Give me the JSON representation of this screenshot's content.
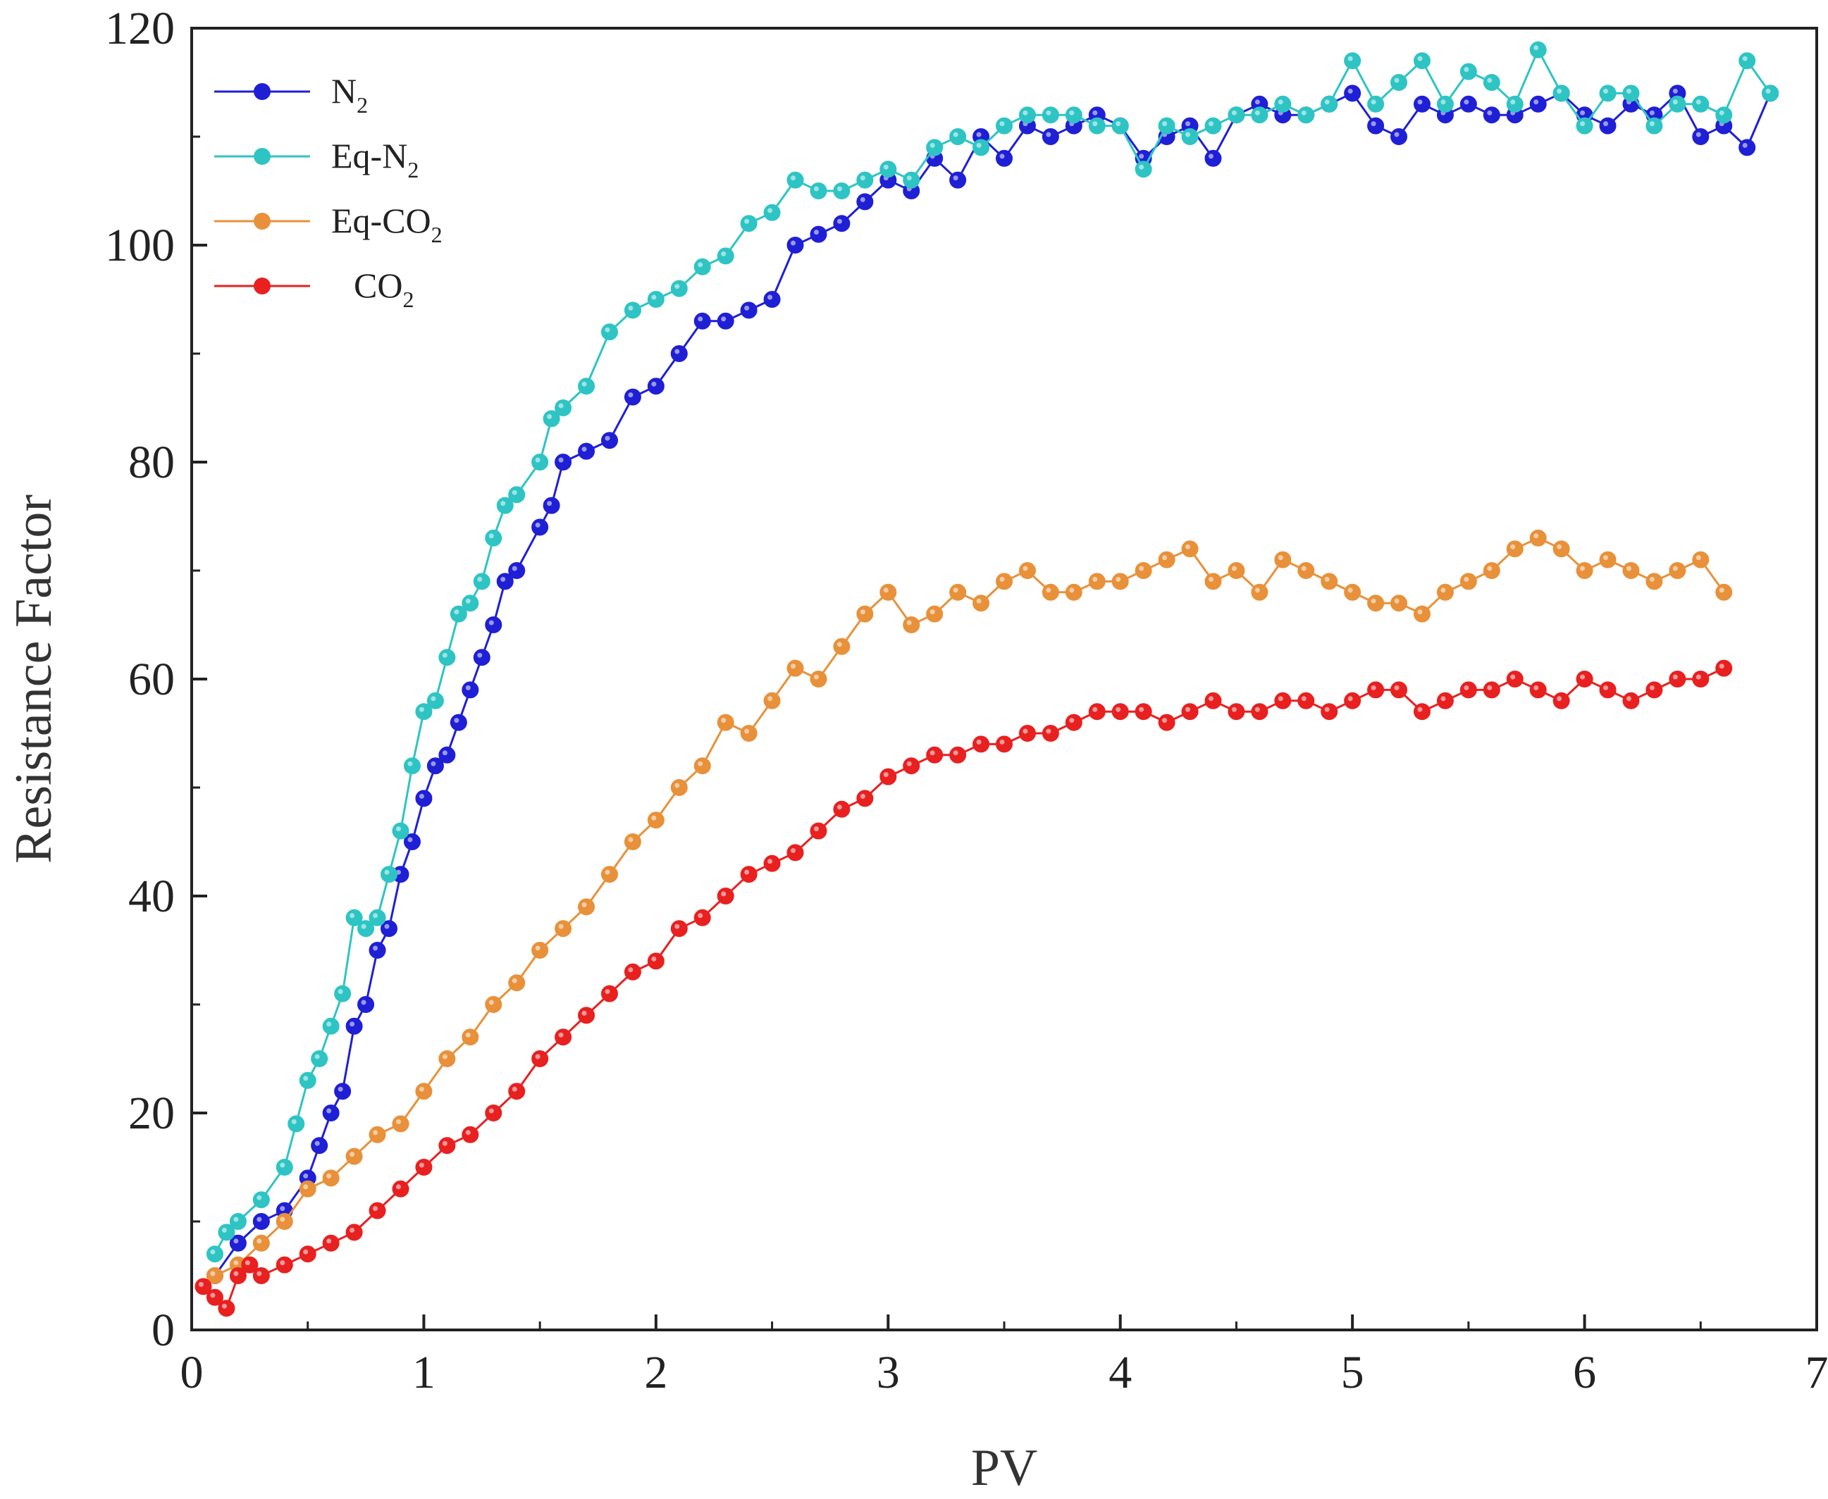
{
  "chart_data": {
    "type": "line",
    "title": "",
    "xlabel": "PV",
    "ylabel": "Resistance Factor",
    "xlim": [
      0,
      7
    ],
    "ylim": [
      0,
      120
    ],
    "xticks": [
      "0",
      "1",
      "2",
      "3",
      "4",
      "5",
      "6",
      "7"
    ],
    "yticks": [
      "0",
      "20",
      "40",
      "60",
      "80",
      "100",
      "120"
    ],
    "legend_position": "top-left",
    "series": [
      {
        "name": "N2",
        "label_main": "N",
        "label_sub": "2",
        "label_suffix": "",
        "color": "#1f1fd6",
        "points": [
          [
            0.1,
            5
          ],
          [
            0.2,
            8
          ],
          [
            0.3,
            10
          ],
          [
            0.4,
            11
          ],
          [
            0.5,
            14
          ],
          [
            0.55,
            17
          ],
          [
            0.6,
            20
          ],
          [
            0.65,
            22
          ],
          [
            0.7,
            28
          ],
          [
            0.75,
            30
          ],
          [
            0.8,
            35
          ],
          [
            0.85,
            37
          ],
          [
            0.9,
            42
          ],
          [
            0.95,
            45
          ],
          [
            1.0,
            49
          ],
          [
            1.05,
            52
          ],
          [
            1.1,
            53
          ],
          [
            1.15,
            56
          ],
          [
            1.2,
            59
          ],
          [
            1.25,
            62
          ],
          [
            1.3,
            65
          ],
          [
            1.35,
            69
          ],
          [
            1.4,
            70
          ],
          [
            1.5,
            74
          ],
          [
            1.55,
            76
          ],
          [
            1.6,
            80
          ],
          [
            1.7,
            81
          ],
          [
            1.8,
            82
          ],
          [
            1.9,
            86
          ],
          [
            2.0,
            87
          ],
          [
            2.1,
            90
          ],
          [
            2.2,
            93
          ],
          [
            2.3,
            93
          ],
          [
            2.4,
            94
          ],
          [
            2.5,
            95
          ],
          [
            2.6,
            100
          ],
          [
            2.7,
            101
          ],
          [
            2.8,
            102
          ],
          [
            2.9,
            104
          ],
          [
            3.0,
            106
          ],
          [
            3.1,
            105
          ],
          [
            3.2,
            108
          ],
          [
            3.3,
            106
          ],
          [
            3.4,
            110
          ],
          [
            3.5,
            108
          ],
          [
            3.6,
            111
          ],
          [
            3.7,
            110
          ],
          [
            3.8,
            111
          ],
          [
            3.9,
            112
          ],
          [
            4.0,
            111
          ],
          [
            4.1,
            108
          ],
          [
            4.2,
            110
          ],
          [
            4.3,
            111
          ],
          [
            4.4,
            108
          ],
          [
            4.5,
            112
          ],
          [
            4.6,
            113
          ],
          [
            4.7,
            112
          ],
          [
            4.8,
            112
          ],
          [
            4.9,
            113
          ],
          [
            5.0,
            114
          ],
          [
            5.1,
            111
          ],
          [
            5.2,
            110
          ],
          [
            5.3,
            113
          ],
          [
            5.4,
            112
          ],
          [
            5.5,
            113
          ],
          [
            5.6,
            112
          ],
          [
            5.7,
            112
          ],
          [
            5.8,
            113
          ],
          [
            5.9,
            114
          ],
          [
            6.0,
            112
          ],
          [
            6.1,
            111
          ],
          [
            6.2,
            113
          ],
          [
            6.3,
            112
          ],
          [
            6.4,
            114
          ],
          [
            6.5,
            110
          ],
          [
            6.6,
            111
          ],
          [
            6.7,
            109
          ],
          [
            6.8,
            114
          ]
        ]
      },
      {
        "name": "Eq-N2",
        "label_main": "Eq-N",
        "label_sub": "2",
        "label_suffix": "",
        "color": "#2ec4c4",
        "points": [
          [
            0.1,
            7
          ],
          [
            0.15,
            9
          ],
          [
            0.2,
            10
          ],
          [
            0.3,
            12
          ],
          [
            0.4,
            15
          ],
          [
            0.45,
            19
          ],
          [
            0.5,
            23
          ],
          [
            0.55,
            25
          ],
          [
            0.6,
            28
          ],
          [
            0.65,
            31
          ],
          [
            0.7,
            38
          ],
          [
            0.75,
            37
          ],
          [
            0.8,
            38
          ],
          [
            0.85,
            42
          ],
          [
            0.9,
            46
          ],
          [
            0.95,
            52
          ],
          [
            1.0,
            57
          ],
          [
            1.05,
            58
          ],
          [
            1.1,
            62
          ],
          [
            1.15,
            66
          ],
          [
            1.2,
            67
          ],
          [
            1.25,
            69
          ],
          [
            1.3,
            73
          ],
          [
            1.35,
            76
          ],
          [
            1.4,
            77
          ],
          [
            1.5,
            80
          ],
          [
            1.55,
            84
          ],
          [
            1.6,
            85
          ],
          [
            1.7,
            87
          ],
          [
            1.8,
            92
          ],
          [
            1.9,
            94
          ],
          [
            2.0,
            95
          ],
          [
            2.1,
            96
          ],
          [
            2.2,
            98
          ],
          [
            2.3,
            99
          ],
          [
            2.4,
            102
          ],
          [
            2.5,
            103
          ],
          [
            2.6,
            106
          ],
          [
            2.7,
            105
          ],
          [
            2.8,
            105
          ],
          [
            2.9,
            106
          ],
          [
            3.0,
            107
          ],
          [
            3.1,
            106
          ],
          [
            3.2,
            109
          ],
          [
            3.3,
            110
          ],
          [
            3.4,
            109
          ],
          [
            3.5,
            111
          ],
          [
            3.6,
            112
          ],
          [
            3.7,
            112
          ],
          [
            3.8,
            112
          ],
          [
            3.9,
            111
          ],
          [
            4.0,
            111
          ],
          [
            4.1,
            107
          ],
          [
            4.2,
            111
          ],
          [
            4.3,
            110
          ],
          [
            4.4,
            111
          ],
          [
            4.5,
            112
          ],
          [
            4.6,
            112
          ],
          [
            4.7,
            113
          ],
          [
            4.8,
            112
          ],
          [
            4.9,
            113
          ],
          [
            5.0,
            117
          ],
          [
            5.1,
            113
          ],
          [
            5.2,
            115
          ],
          [
            5.3,
            117
          ],
          [
            5.4,
            113
          ],
          [
            5.5,
            116
          ],
          [
            5.6,
            115
          ],
          [
            5.7,
            113
          ],
          [
            5.8,
            118
          ],
          [
            5.9,
            114
          ],
          [
            6.0,
            111
          ],
          [
            6.1,
            114
          ],
          [
            6.2,
            114
          ],
          [
            6.3,
            111
          ],
          [
            6.4,
            113
          ],
          [
            6.5,
            113
          ],
          [
            6.6,
            112
          ],
          [
            6.7,
            117
          ],
          [
            6.8,
            114
          ]
        ]
      },
      {
        "name": "Eq-CO2",
        "label_main": "Eq-CO",
        "label_sub": "2",
        "label_suffix": "",
        "color": "#e8913a",
        "points": [
          [
            0.1,
            5
          ],
          [
            0.2,
            6
          ],
          [
            0.3,
            8
          ],
          [
            0.4,
            10
          ],
          [
            0.5,
            13
          ],
          [
            0.6,
            14
          ],
          [
            0.7,
            16
          ],
          [
            0.8,
            18
          ],
          [
            0.9,
            19
          ],
          [
            1.0,
            22
          ],
          [
            1.1,
            25
          ],
          [
            1.2,
            27
          ],
          [
            1.3,
            30
          ],
          [
            1.4,
            32
          ],
          [
            1.5,
            35
          ],
          [
            1.6,
            37
          ],
          [
            1.7,
            39
          ],
          [
            1.8,
            42
          ],
          [
            1.9,
            45
          ],
          [
            2.0,
            47
          ],
          [
            2.1,
            50
          ],
          [
            2.2,
            52
          ],
          [
            2.3,
            56
          ],
          [
            2.4,
            55
          ],
          [
            2.5,
            58
          ],
          [
            2.6,
            61
          ],
          [
            2.7,
            60
          ],
          [
            2.8,
            63
          ],
          [
            2.9,
            66
          ],
          [
            3.0,
            68
          ],
          [
            3.1,
            65
          ],
          [
            3.2,
            66
          ],
          [
            3.3,
            68
          ],
          [
            3.4,
            67
          ],
          [
            3.5,
            69
          ],
          [
            3.6,
            70
          ],
          [
            3.7,
            68
          ],
          [
            3.8,
            68
          ],
          [
            3.9,
            69
          ],
          [
            4.0,
            69
          ],
          [
            4.1,
            70
          ],
          [
            4.2,
            71
          ],
          [
            4.3,
            72
          ],
          [
            4.4,
            69
          ],
          [
            4.5,
            70
          ],
          [
            4.6,
            68
          ],
          [
            4.7,
            71
          ],
          [
            4.8,
            70
          ],
          [
            4.9,
            69
          ],
          [
            5.0,
            68
          ],
          [
            5.1,
            67
          ],
          [
            5.2,
            67
          ],
          [
            5.3,
            66
          ],
          [
            5.4,
            68
          ],
          [
            5.5,
            69
          ],
          [
            5.6,
            70
          ],
          [
            5.7,
            72
          ],
          [
            5.8,
            73
          ],
          [
            5.9,
            72
          ],
          [
            6.0,
            70
          ],
          [
            6.1,
            71
          ],
          [
            6.2,
            70
          ],
          [
            6.3,
            69
          ],
          [
            6.4,
            70
          ],
          [
            6.5,
            71
          ],
          [
            6.6,
            68
          ]
        ]
      },
      {
        "name": "CO2",
        "label_main": "CO",
        "label_sub": "2",
        "label_suffix": "",
        "color": "#e82020",
        "points": [
          [
            0.05,
            4
          ],
          [
            0.1,
            3
          ],
          [
            0.15,
            2
          ],
          [
            0.2,
            5
          ],
          [
            0.25,
            6
          ],
          [
            0.3,
            5
          ],
          [
            0.4,
            6
          ],
          [
            0.5,
            7
          ],
          [
            0.6,
            8
          ],
          [
            0.7,
            9
          ],
          [
            0.8,
            11
          ],
          [
            0.9,
            13
          ],
          [
            1.0,
            15
          ],
          [
            1.1,
            17
          ],
          [
            1.2,
            18
          ],
          [
            1.3,
            20
          ],
          [
            1.4,
            22
          ],
          [
            1.5,
            25
          ],
          [
            1.6,
            27
          ],
          [
            1.7,
            29
          ],
          [
            1.8,
            31
          ],
          [
            1.9,
            33
          ],
          [
            2.0,
            34
          ],
          [
            2.1,
            37
          ],
          [
            2.2,
            38
          ],
          [
            2.3,
            40
          ],
          [
            2.4,
            42
          ],
          [
            2.5,
            43
          ],
          [
            2.6,
            44
          ],
          [
            2.7,
            46
          ],
          [
            2.8,
            48
          ],
          [
            2.9,
            49
          ],
          [
            3.0,
            51
          ],
          [
            3.1,
            52
          ],
          [
            3.2,
            53
          ],
          [
            3.3,
            53
          ],
          [
            3.4,
            54
          ],
          [
            3.5,
            54
          ],
          [
            3.6,
            55
          ],
          [
            3.7,
            55
          ],
          [
            3.8,
            56
          ],
          [
            3.9,
            57
          ],
          [
            4.0,
            57
          ],
          [
            4.1,
            57
          ],
          [
            4.2,
            56
          ],
          [
            4.3,
            57
          ],
          [
            4.4,
            58
          ],
          [
            4.5,
            57
          ],
          [
            4.6,
            57
          ],
          [
            4.7,
            58
          ],
          [
            4.8,
            58
          ],
          [
            4.9,
            57
          ],
          [
            5.0,
            58
          ],
          [
            5.1,
            59
          ],
          [
            5.2,
            59
          ],
          [
            5.3,
            57
          ],
          [
            5.4,
            58
          ],
          [
            5.5,
            59
          ],
          [
            5.6,
            59
          ],
          [
            5.7,
            60
          ],
          [
            5.8,
            59
          ],
          [
            5.9,
            58
          ],
          [
            6.0,
            60
          ],
          [
            6.1,
            59
          ],
          [
            6.2,
            58
          ],
          [
            6.3,
            59
          ],
          [
            6.4,
            60
          ],
          [
            6.5,
            60
          ],
          [
            6.6,
            61
          ]
        ]
      }
    ]
  }
}
